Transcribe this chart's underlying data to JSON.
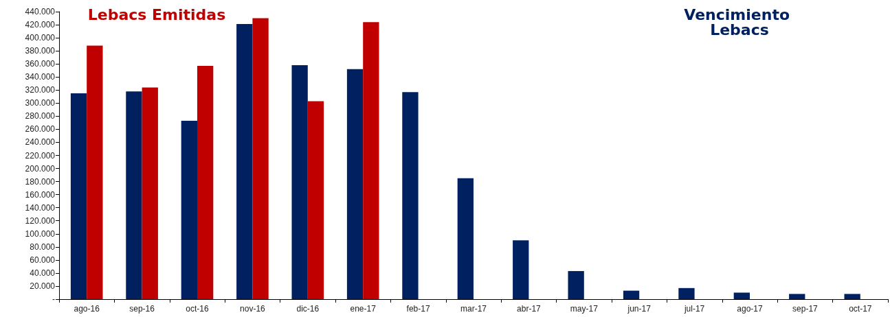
{
  "chart_data": {
    "type": "bar",
    "categories": [
      "ago-16",
      "sep-16",
      "oct-16",
      "nov-16",
      "dic-16",
      "ene-17",
      "feb-17",
      "mar-17",
      "abr-17",
      "may-17",
      "jun-17",
      "jul-17",
      "ago-17",
      "sep-17",
      "oct-17"
    ],
    "series": [
      {
        "name": "Vencimiento Lebacs",
        "color": "#002060",
        "values": [
          315000,
          318000,
          273000,
          421000,
          358000,
          352000,
          317000,
          185000,
          90000,
          43000,
          13000,
          17000,
          10000,
          8000,
          8000
        ]
      },
      {
        "name": "Lebacs Emitidas",
        "color": "#c00000",
        "values": [
          388000,
          324000,
          357000,
          430000,
          303000,
          424000,
          null,
          null,
          null,
          null,
          null,
          null,
          null,
          null,
          null
        ]
      }
    ],
    "ylim": [
      0,
      440000
    ],
    "yticks": [
      {
        "value": 0,
        "label": "-"
      },
      {
        "value": 20000,
        "label": "20.000"
      },
      {
        "value": 40000,
        "label": "40.000"
      },
      {
        "value": 60000,
        "label": "60.000"
      },
      {
        "value": 80000,
        "label": "80.000"
      },
      {
        "value": 100000,
        "label": "100.000"
      },
      {
        "value": 120000,
        "label": "120.000"
      },
      {
        "value": 140000,
        "label": "140.000"
      },
      {
        "value": 160000,
        "label": "160.000"
      },
      {
        "value": 180000,
        "label": "180.000"
      },
      {
        "value": 200000,
        "label": "200.000"
      },
      {
        "value": 220000,
        "label": "220.000"
      },
      {
        "value": 240000,
        "label": "240.000"
      },
      {
        "value": 260000,
        "label": "260.000"
      },
      {
        "value": 280000,
        "label": "280.000"
      },
      {
        "value": 300000,
        "label": "300.000"
      },
      {
        "value": 320000,
        "label": "320.000"
      },
      {
        "value": 340000,
        "label": "340.000"
      },
      {
        "value": 360000,
        "label": "360.000"
      },
      {
        "value": 380000,
        "label": "380.000"
      },
      {
        "value": 400000,
        "label": "400.000"
      },
      {
        "value": 420000,
        "label": "420.000"
      },
      {
        "value": 440000,
        "label": "440.000"
      }
    ],
    "grid": false,
    "legend": "top"
  }
}
